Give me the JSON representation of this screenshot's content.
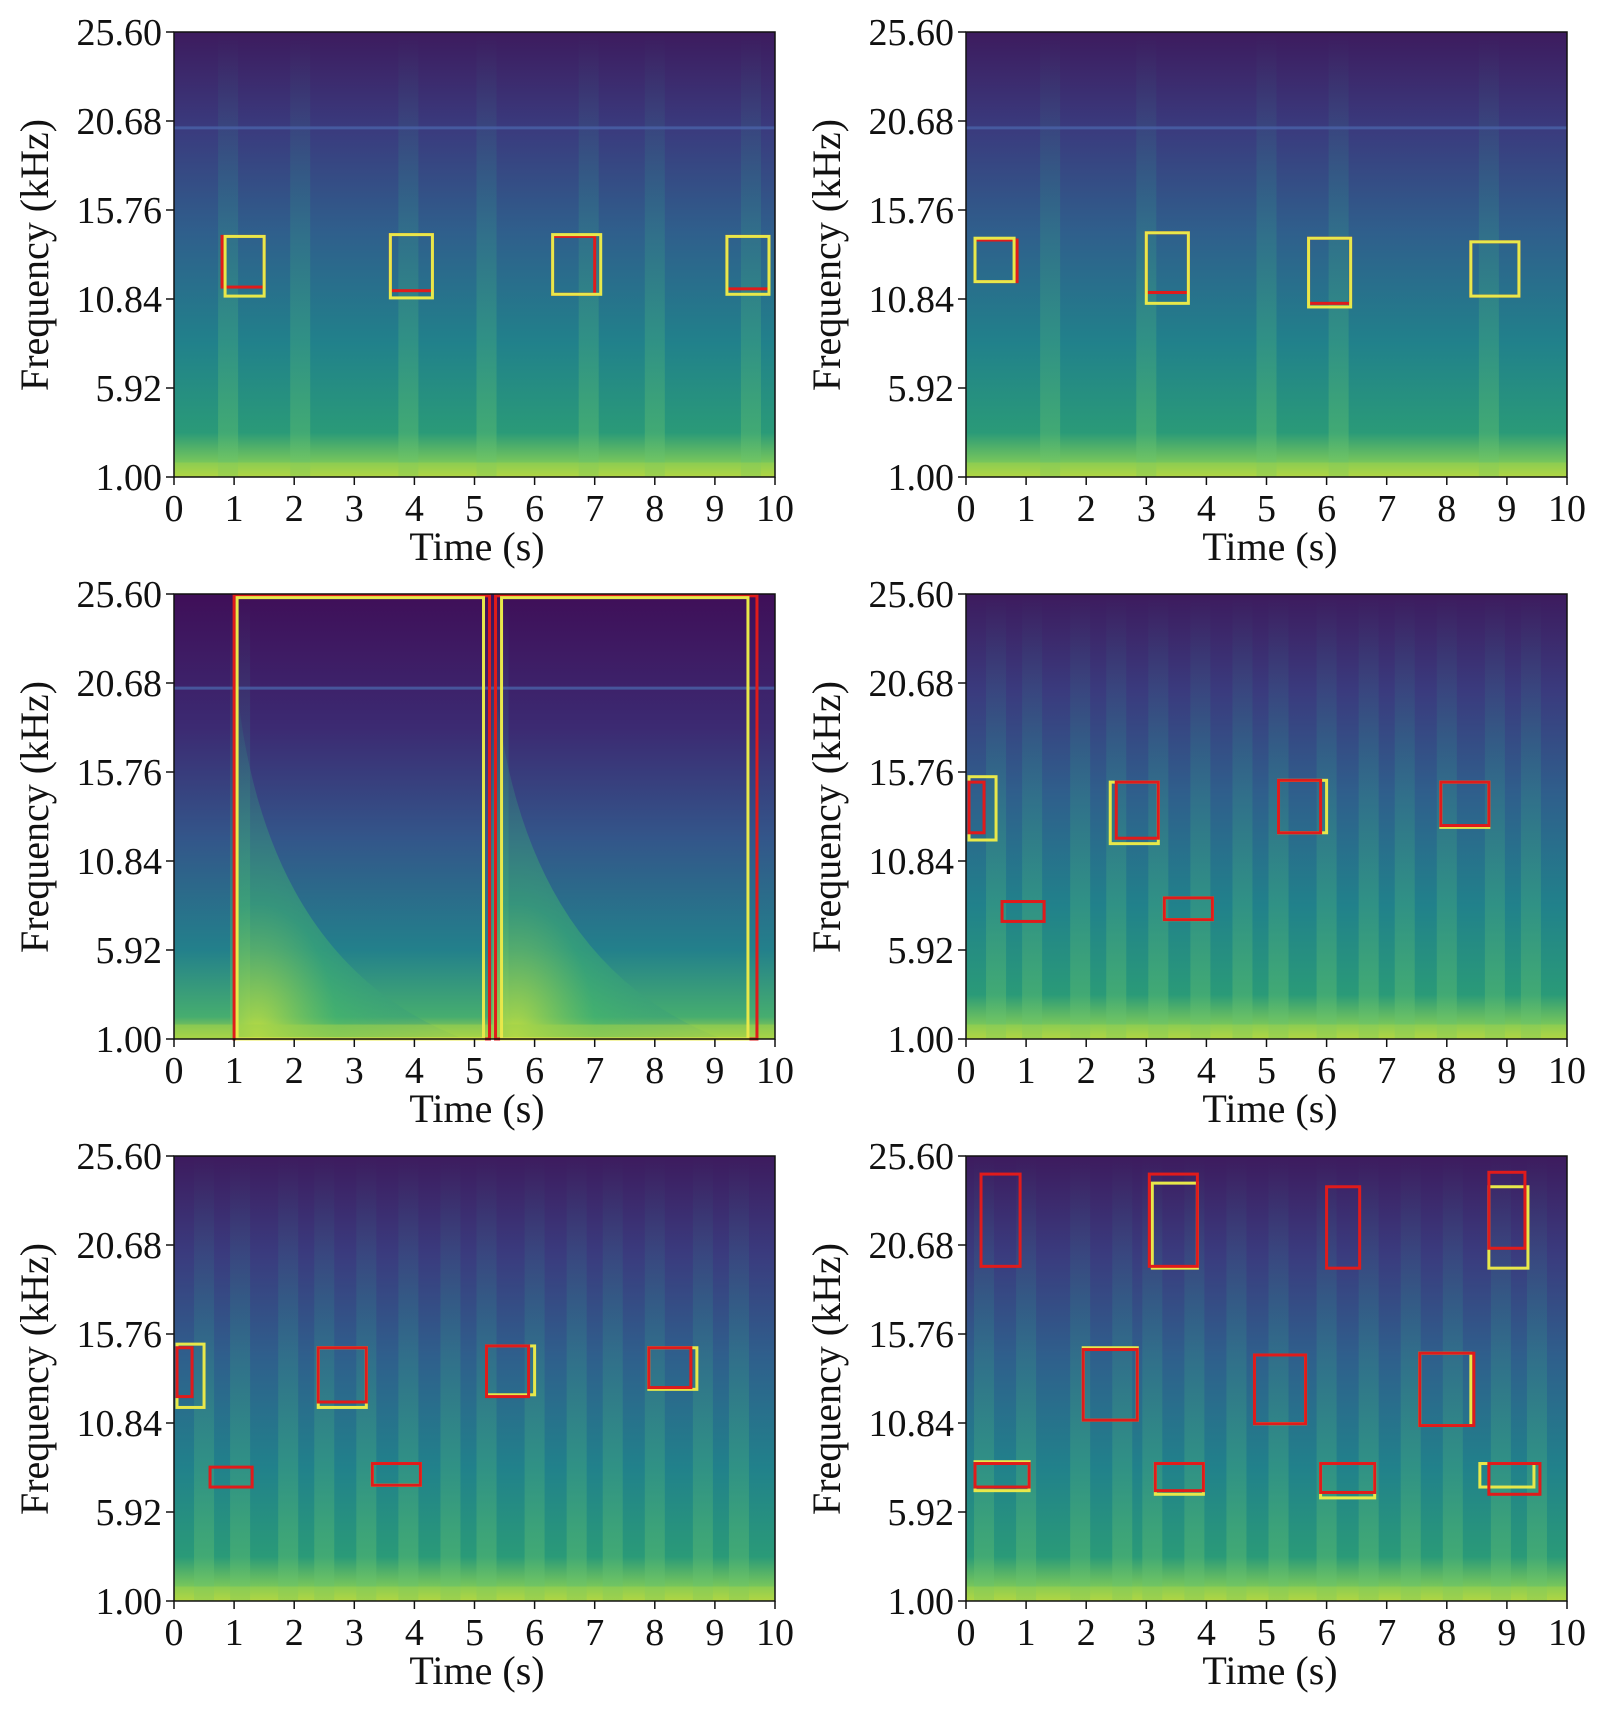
{
  "figure": {
    "x_axis_label": "Time (s)",
    "y_axis_label": "Frequency (kHz)",
    "x_ticks": [
      "0",
      "1",
      "2",
      "3",
      "4",
      "5",
      "6",
      "7",
      "8",
      "9",
      "10"
    ],
    "y_ticks": [
      "1.00",
      "5.92",
      "10.84",
      "15.76",
      "20.68",
      "25.60"
    ],
    "box_colors": {
      "yellow": "#e8e84a",
      "red": "#e01b1b"
    },
    "colormap": [
      "#440154",
      "#3b528b",
      "#21918c",
      "#5ec962",
      "#fde725"
    ]
  },
  "chart_data": [
    {
      "type": "heatmap",
      "panel": "top-left",
      "xlabel": "Time (s)",
      "ylabel": "Frequency (kHz)",
      "xlim": [
        0,
        10
      ],
      "ylim": [
        1.0,
        25.6
      ],
      "vertical_bands": [
        0.9,
        2.1,
        3.9,
        5.2,
        6.9,
        8.0,
        9.6
      ],
      "harmonic_line_khz": 20.3,
      "boxes": [
        {
          "color": "red",
          "t0": 0.8,
          "t1": 1.5,
          "f0": 11.5,
          "f1": 14.3
        },
        {
          "color": "yellow",
          "t0": 0.85,
          "t1": 1.5,
          "f0": 11.0,
          "f1": 14.3
        },
        {
          "color": "red",
          "t0": 3.6,
          "t1": 4.3,
          "f0": 11.3,
          "f1": 14.4
        },
        {
          "color": "yellow",
          "t0": 3.6,
          "t1": 4.3,
          "f0": 10.9,
          "f1": 14.4
        },
        {
          "color": "red",
          "t0": 6.3,
          "t1": 7.0,
          "f0": 11.1,
          "f1": 14.3
        },
        {
          "color": "yellow",
          "t0": 6.3,
          "t1": 7.1,
          "f0": 11.1,
          "f1": 14.4
        },
        {
          "color": "red",
          "t0": 9.2,
          "t1": 9.9,
          "f0": 11.4,
          "f1": 14.3
        },
        {
          "color": "yellow",
          "t0": 9.2,
          "t1": 9.9,
          "f0": 11.1,
          "f1": 14.3
        }
      ]
    },
    {
      "type": "heatmap",
      "panel": "top-right",
      "xlabel": "Time (s)",
      "ylabel": "Frequency (kHz)",
      "xlim": [
        0,
        10
      ],
      "ylim": [
        1.0,
        25.6
      ],
      "vertical_bands": [
        1.4,
        3.0,
        5.0,
        6.2,
        8.7
      ],
      "harmonic_line_khz": 20.3,
      "boxes": [
        {
          "color": "red",
          "t0": 0.15,
          "t1": 0.85,
          "f0": 11.8,
          "f1": 14.1
        },
        {
          "color": "yellow",
          "t0": 0.15,
          "t1": 0.8,
          "f0": 11.8,
          "f1": 14.2
        },
        {
          "color": "red",
          "t0": 3.0,
          "t1": 3.7,
          "f0": 11.2,
          "f1": 14.5
        },
        {
          "color": "yellow",
          "t0": 3.0,
          "t1": 3.7,
          "f0": 10.6,
          "f1": 14.5
        },
        {
          "color": "red",
          "t0": 5.7,
          "t1": 6.4,
          "f0": 10.6,
          "f1": 14.2
        },
        {
          "color": "yellow",
          "t0": 5.7,
          "t1": 6.4,
          "f0": 10.4,
          "f1": 14.2
        },
        {
          "color": "red",
          "t0": 8.4,
          "t1": 9.2,
          "f0": 11.0,
          "f1": 14.0
        },
        {
          "color": "yellow",
          "t0": 8.4,
          "t1": 9.2,
          "f0": 11.0,
          "f1": 14.0
        }
      ]
    },
    {
      "type": "heatmap",
      "panel": "middle-left",
      "xlabel": "Time (s)",
      "ylabel": "Frequency (kHz)",
      "xlim": [
        0,
        10
      ],
      "ylim": [
        1.0,
        25.6
      ],
      "vertical_bands": [
        1.1,
        5.4
      ],
      "sweep_events": [
        1.0,
        5.3
      ],
      "harmonic_line_khz": 20.4,
      "boxes": [
        {
          "color": "red",
          "t0": 1.0,
          "t1": 5.25,
          "f0": 1.0,
          "f1": 25.5
        },
        {
          "color": "yellow",
          "t0": 1.05,
          "t1": 5.15,
          "f0": 1.0,
          "f1": 25.4
        },
        {
          "color": "red",
          "t0": 5.35,
          "t1": 9.7,
          "f0": 1.0,
          "f1": 25.5
        },
        {
          "color": "yellow",
          "t0": 5.45,
          "t1": 9.55,
          "f0": 1.0,
          "f1": 25.4
        }
      ]
    },
    {
      "type": "heatmap",
      "panel": "middle-right",
      "xlabel": "Time (s)",
      "ylabel": "Frequency (kHz)",
      "xlim": [
        0,
        10
      ],
      "ylim": [
        1.0,
        25.6
      ],
      "vertical_bands": [
        0.5,
        1.1,
        1.9,
        2.5,
        3.2,
        3.9,
        4.6,
        5.2,
        6.0,
        6.7,
        7.3,
        8.0,
        8.8,
        9.4
      ],
      "boxes": [
        {
          "color": "yellow",
          "t0": 0.05,
          "t1": 0.5,
          "f0": 12.0,
          "f1": 15.5
        },
        {
          "color": "red",
          "t0": 0.05,
          "t1": 0.3,
          "f0": 12.4,
          "f1": 15.2
        },
        {
          "color": "yellow",
          "t0": 2.4,
          "t1": 3.2,
          "f0": 11.8,
          "f1": 15.2
        },
        {
          "color": "red",
          "t0": 2.5,
          "t1": 3.2,
          "f0": 12.1,
          "f1": 15.2
        },
        {
          "color": "yellow",
          "t0": 5.2,
          "t1": 6.0,
          "f0": 12.4,
          "f1": 15.3
        },
        {
          "color": "red",
          "t0": 5.2,
          "t1": 5.9,
          "f0": 12.4,
          "f1": 15.3
        },
        {
          "color": "yellow",
          "t0": 7.9,
          "t1": 8.7,
          "f0": 12.7,
          "f1": 15.2
        },
        {
          "color": "red",
          "t0": 7.9,
          "t1": 8.7,
          "f0": 12.8,
          "f1": 15.2
        },
        {
          "color": "red",
          "t0": 0.6,
          "t1": 1.3,
          "f0": 7.5,
          "f1": 8.6
        },
        {
          "color": "yellow",
          "t0": 3.3,
          "t1": 4.1,
          "f0": 7.6,
          "f1": 8.8
        },
        {
          "color": "red",
          "t0": 3.3,
          "t1": 4.1,
          "f0": 7.6,
          "f1": 8.8
        }
      ]
    },
    {
      "type": "heatmap",
      "panel": "bottom-left",
      "xlabel": "Time (s)",
      "ylabel": "Frequency (kHz)",
      "xlim": [
        0,
        10
      ],
      "ylim": [
        1.0,
        25.6
      ],
      "vertical_bands": [
        0.5,
        1.1,
        1.9,
        2.5,
        3.2,
        3.9,
        4.6,
        5.2,
        6.0,
        6.7,
        7.3,
        8.0,
        8.8,
        9.4
      ],
      "boxes": [
        {
          "color": "yellow",
          "t0": 0.05,
          "t1": 0.5,
          "f0": 11.7,
          "f1": 15.2
        },
        {
          "color": "red",
          "t0": 0.05,
          "t1": 0.3,
          "f0": 12.3,
          "f1": 15.0
        },
        {
          "color": "yellow",
          "t0": 2.4,
          "t1": 3.2,
          "f0": 11.7,
          "f1": 15.0
        },
        {
          "color": "red",
          "t0": 2.4,
          "t1": 3.2,
          "f0": 12.0,
          "f1": 15.0
        },
        {
          "color": "yellow",
          "t0": 5.2,
          "t1": 6.0,
          "f0": 12.4,
          "f1": 15.1
        },
        {
          "color": "red",
          "t0": 5.2,
          "t1": 5.9,
          "f0": 12.3,
          "f1": 15.1
        },
        {
          "color": "yellow",
          "t0": 7.9,
          "t1": 8.7,
          "f0": 12.7,
          "f1": 15.0
        },
        {
          "color": "red",
          "t0": 7.9,
          "t1": 8.6,
          "f0": 12.8,
          "f1": 15.0
        },
        {
          "color": "red",
          "t0": 0.6,
          "t1": 1.3,
          "f0": 7.3,
          "f1": 8.4
        },
        {
          "color": "yellow",
          "t0": 3.3,
          "t1": 4.1,
          "f0": 7.4,
          "f1": 8.6
        },
        {
          "color": "red",
          "t0": 3.3,
          "t1": 4.1,
          "f0": 7.4,
          "f1": 8.6
        }
      ]
    },
    {
      "type": "heatmap",
      "panel": "bottom-right",
      "xlabel": "Time (s)",
      "ylabel": "Frequency (kHz)",
      "xlim": [
        0,
        10
      ],
      "ylim": [
        1.0,
        25.6
      ],
      "vertical_bands": [
        0.3,
        1.0,
        1.9,
        2.6,
        3.1,
        3.8,
        4.5,
        5.2,
        6.0,
        6.7,
        7.4,
        8.1,
        8.9,
        9.5
      ],
      "boxes": [
        {
          "color": "red",
          "t0": 0.25,
          "t1": 0.9,
          "f0": 19.5,
          "f1": 24.6
        },
        {
          "color": "yellow",
          "t0": 3.1,
          "t1": 3.85,
          "f0": 19.4,
          "f1": 24.1
        },
        {
          "color": "red",
          "t0": 3.05,
          "t1": 3.85,
          "f0": 19.5,
          "f1": 24.6
        },
        {
          "color": "red",
          "t0": 6.0,
          "t1": 6.55,
          "f0": 19.4,
          "f1": 23.9
        },
        {
          "color": "yellow",
          "t0": 8.7,
          "t1": 9.35,
          "f0": 19.4,
          "f1": 23.9
        },
        {
          "color": "red",
          "t0": 8.7,
          "t1": 9.3,
          "f0": 20.5,
          "f1": 24.7
        },
        {
          "color": "yellow",
          "t0": 1.95,
          "t1": 2.85,
          "f0": 11.0,
          "f1": 15.0
        },
        {
          "color": "red",
          "t0": 1.95,
          "t1": 2.85,
          "f0": 11.0,
          "f1": 14.9
        },
        {
          "color": "yellow",
          "t0": 4.8,
          "t1": 5.65,
          "f0": 10.8,
          "f1": 14.6
        },
        {
          "color": "red",
          "t0": 4.8,
          "t1": 5.65,
          "f0": 10.8,
          "f1": 14.6
        },
        {
          "color": "yellow",
          "t0": 7.55,
          "t1": 8.4,
          "f0": 10.7,
          "f1": 14.7
        },
        {
          "color": "red",
          "t0": 7.55,
          "t1": 8.45,
          "f0": 10.7,
          "f1": 14.7
        },
        {
          "color": "yellow",
          "t0": 0.15,
          "t1": 1.05,
          "f0": 7.1,
          "f1": 8.7
        },
        {
          "color": "red",
          "t0": 0.15,
          "t1": 1.05,
          "f0": 7.3,
          "f1": 8.6
        },
        {
          "color": "yellow",
          "t0": 3.15,
          "t1": 3.95,
          "f0": 6.9,
          "f1": 8.6
        },
        {
          "color": "red",
          "t0": 3.15,
          "t1": 3.95,
          "f0": 7.1,
          "f1": 8.6
        },
        {
          "color": "yellow",
          "t0": 5.9,
          "t1": 6.8,
          "f0": 6.7,
          "f1": 8.6
        },
        {
          "color": "red",
          "t0": 5.9,
          "t1": 6.8,
          "f0": 7.0,
          "f1": 8.6
        },
        {
          "color": "yellow",
          "t0": 8.55,
          "t1": 9.45,
          "f0": 7.3,
          "f1": 8.6
        },
        {
          "color": "red",
          "t0": 8.7,
          "t1": 9.55,
          "f0": 6.9,
          "f1": 8.6
        }
      ]
    }
  ]
}
